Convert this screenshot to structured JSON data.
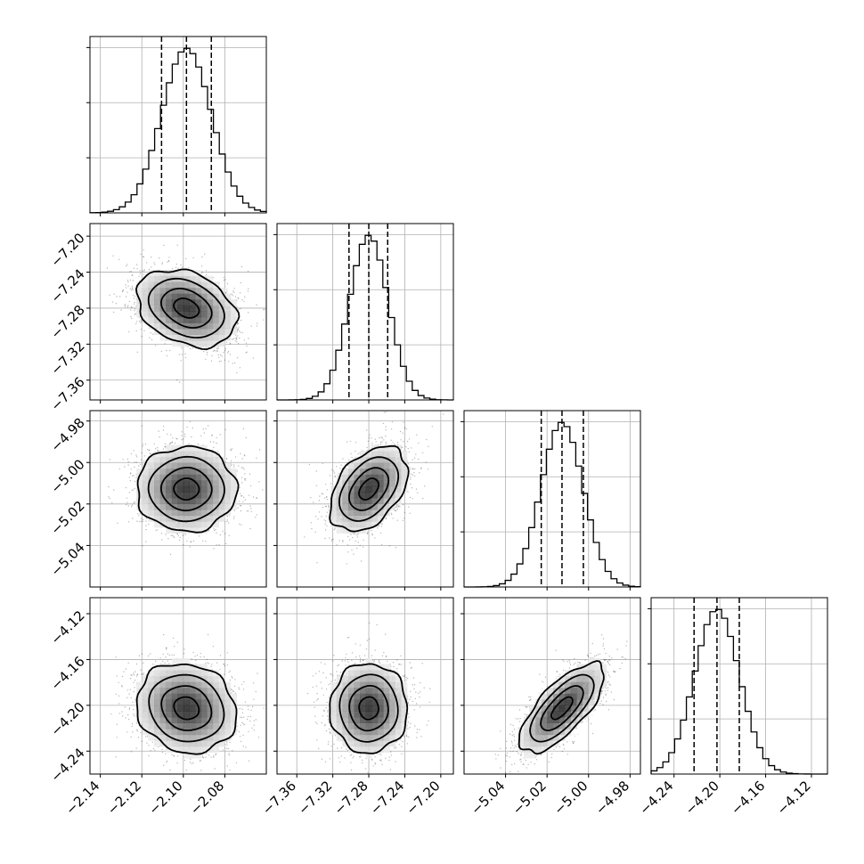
{
  "chart_data": {
    "type": "corner",
    "params": [
      {
        "range": [
          -2.145,
          -2.06
        ],
        "ticks": [
          -2.14,
          -2.12,
          -2.1,
          -2.08
        ],
        "tick_labels": [
          "−2.14",
          "−2.12",
          "−2.10",
          "−2.08"
        ],
        "median": -2.0985,
        "q16": -2.1105,
        "q84": -2.0865,
        "sigma": 0.012
      },
      {
        "range": [
          -7.382,
          -7.186
        ],
        "ticks": [
          -7.36,
          -7.32,
          -7.28,
          -7.24,
          -7.2
        ],
        "tick_labels": [
          "−7.36",
          "−7.32",
          "−7.28",
          "−7.24",
          "−7.20"
        ],
        "median": -7.28,
        "q16": -7.302,
        "q84": -7.259,
        "sigma": 0.0215
      },
      {
        "range": [
          -5.06,
          -4.975
        ],
        "ticks": [
          -5.04,
          -5.02,
          -5.0,
          -4.98
        ],
        "tick_labels": [
          "−5.04",
          "−5.02",
          "−5.00",
          "−4.98"
        ],
        "median": -5.0128,
        "q16": -5.0228,
        "q84": -5.0025,
        "sigma": 0.0102
      },
      {
        "range": [
          -4.26,
          -4.106
        ],
        "ticks": [
          -4.24,
          -4.2,
          -4.16,
          -4.12
        ],
        "tick_labels": [
          "−4.24",
          "−4.20",
          "−4.16",
          "−4.12"
        ],
        "median": -4.2025,
        "q16": -4.2225,
        "q84": -4.183,
        "sigma": 0.0195
      }
    ],
    "correlations": [
      {
        "pair": [
          0,
          1
        ],
        "rho": -0.3
      },
      {
        "pair": [
          0,
          2
        ],
        "rho": 0.0
      },
      {
        "pair": [
          1,
          2
        ],
        "rho": 0.42
      },
      {
        "pair": [
          0,
          3
        ],
        "rho": -0.12
      },
      {
        "pair": [
          1,
          3
        ],
        "rho": 0.0
      },
      {
        "pair": [
          2,
          3
        ],
        "rho": 0.72
      }
    ],
    "contour_levels_sigma": [
      0.5,
      1.0,
      1.5,
      2.0
    ],
    "grid": true,
    "colors": {
      "grid": "#b0b0b0",
      "line": "#000000",
      "points": "#000000"
    }
  }
}
